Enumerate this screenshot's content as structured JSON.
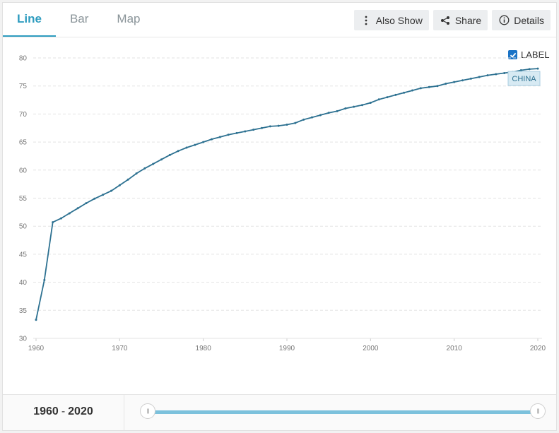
{
  "tabs": [
    {
      "label": "Line",
      "active": true
    },
    {
      "label": "Bar",
      "active": false
    },
    {
      "label": "Map",
      "active": false
    }
  ],
  "actions": {
    "also_show": "Also Show",
    "share": "Share",
    "details": "Details"
  },
  "label_toggle": {
    "text": "LABEL",
    "checked": true
  },
  "range": {
    "start": "1960",
    "end": "2020",
    "separator": "-"
  },
  "chart_data": {
    "type": "line",
    "title": "",
    "xlabel": "",
    "ylabel": "",
    "xlim": [
      1960,
      2020
    ],
    "ylim": [
      30,
      80
    ],
    "x_ticks": [
      "1960",
      "1970",
      "1980",
      "1990",
      "2000",
      "2010",
      "2020"
    ],
    "y_ticks": [
      "30",
      "35",
      "40",
      "45",
      "50",
      "55",
      "60",
      "65",
      "70",
      "75",
      "80"
    ],
    "grid": true,
    "series": [
      {
        "name": "CHINA",
        "color": "#2d7191",
        "x": [
          1960,
          1961,
          1962,
          1963,
          1964,
          1965,
          1966,
          1967,
          1968,
          1969,
          1970,
          1971,
          1972,
          1973,
          1974,
          1975,
          1976,
          1977,
          1978,
          1979,
          1980,
          1981,
          1982,
          1983,
          1984,
          1985,
          1986,
          1987,
          1988,
          1989,
          1990,
          1991,
          1992,
          1993,
          1994,
          1995,
          1996,
          1997,
          1998,
          1999,
          2000,
          2001,
          2002,
          2003,
          2004,
          2005,
          2006,
          2007,
          2008,
          2009,
          2010,
          2011,
          2012,
          2013,
          2014,
          2015,
          2016,
          2017,
          2018,
          2019,
          2020
        ],
        "y": [
          33.3,
          40.4,
          50.7,
          51.4,
          52.3,
          53.2,
          54.1,
          54.9,
          55.6,
          56.3,
          57.3,
          58.3,
          59.4,
          60.3,
          61.1,
          61.9,
          62.7,
          63.4,
          64.0,
          64.5,
          65.0,
          65.5,
          65.9,
          66.3,
          66.6,
          66.9,
          67.2,
          67.5,
          67.8,
          67.9,
          68.1,
          68.4,
          69.0,
          69.4,
          69.8,
          70.2,
          70.5,
          71.0,
          71.3,
          71.6,
          72.0,
          72.6,
          73.0,
          73.4,
          73.8,
          74.2,
          74.6,
          74.8,
          75.0,
          75.4,
          75.7,
          76.0,
          76.3,
          76.6,
          76.9,
          77.1,
          77.3,
          77.5,
          77.8,
          78.0,
          78.1
        ]
      }
    ],
    "label_text": "CHINA"
  }
}
